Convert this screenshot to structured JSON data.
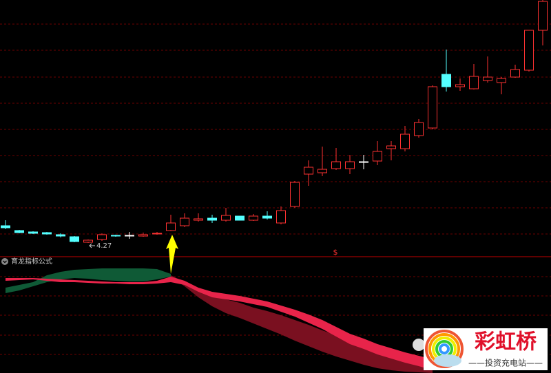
{
  "chart_data": [
    {
      "type": "candlestick",
      "open": [
        4.52,
        4.45,
        4.43,
        4.42,
        4.39,
        4.36,
        4.28,
        4.32,
        4.38,
        4.38,
        4.37,
        4.4,
        4.45,
        4.52,
        4.6,
        4.63,
        4.6,
        4.66,
        4.6,
        4.66,
        4.56,
        4.8,
        5.27,
        5.29,
        5.35,
        5.35,
        5.45,
        5.46,
        5.64,
        5.64,
        5.83,
        5.94,
        6.72,
        6.54,
        6.51,
        6.63,
        6.6,
        6.68,
        6.78,
        7.36
      ],
      "high": [
        4.6,
        4.46,
        4.44,
        4.43,
        4.41,
        4.37,
        4.32,
        4.41,
        4.39,
        4.43,
        4.42,
        4.43,
        4.68,
        4.7,
        4.7,
        4.68,
        4.78,
        4.66,
        4.69,
        4.73,
        4.8,
        5.17,
        5.47,
        5.67,
        5.65,
        5.55,
        5.55,
        5.75,
        5.75,
        5.97,
        6.07,
        6.56,
        7.08,
        6.66,
        6.87,
        6.98,
        6.68,
        6.86,
        7.36,
        7.8
      ],
      "low": [
        4.47,
        4.41,
        4.4,
        4.39,
        4.35,
        4.28,
        4.27,
        4.3,
        4.36,
        4.33,
        4.36,
        4.39,
        4.44,
        4.5,
        4.58,
        4.56,
        4.58,
        4.6,
        4.59,
        4.61,
        4.54,
        4.78,
        5.1,
        5.24,
        5.33,
        5.27,
        5.34,
        5.4,
        5.47,
        5.6,
        5.8,
        5.92,
        6.47,
        6.48,
        6.5,
        6.6,
        6.43,
        6.67,
        6.76,
        7.14
      ],
      "close": [
        4.49,
        4.42,
        4.41,
        4.4,
        4.37,
        4.29,
        4.31,
        4.39,
        4.37,
        4.38,
        4.39,
        4.41,
        4.56,
        4.63,
        4.62,
        4.6,
        4.67,
        4.6,
        4.66,
        4.63,
        4.74,
        5.15,
        5.37,
        5.34,
        5.45,
        5.45,
        5.45,
        5.6,
        5.68,
        5.85,
        6.02,
        6.54,
        6.54,
        6.57,
        6.69,
        6.68,
        6.66,
        6.79,
        7.36,
        7.78
      ],
      "up_color": "#ff3232",
      "down_color": "#54ffff",
      "flat_color": "#ffffff",
      "ylim": [
        4.07,
        7.8
      ],
      "marker_text": "$"
    },
    {
      "type": "band",
      "title": "育龙指标公式",
      "ylim": [
        0,
        169
      ],
      "series": [
        {
          "color": "#0f5a36",
          "upper": [
            124,
            128,
            132,
            142,
            147,
            150,
            151,
            152,
            152,
            152,
            152,
            151,
            144,
            null,
            null,
            null,
            null,
            null,
            null,
            null,
            null,
            null,
            null,
            null,
            null,
            null,
            null,
            null,
            null,
            null,
            null,
            null,
            null,
            null,
            null,
            null,
            null,
            null,
            null,
            null
          ],
          "lower": [
            116,
            120,
            126,
            132,
            136,
            138,
            137,
            135,
            134,
            133,
            133,
            136,
            140,
            null,
            null,
            null,
            null,
            null,
            null,
            null,
            null,
            null,
            null,
            null,
            null,
            null,
            null,
            null,
            null,
            null,
            null,
            null,
            null,
            null,
            null,
            null,
            null,
            null,
            null,
            null
          ]
        },
        {
          "color": "#7a1020",
          "upper": [
            null,
            null,
            null,
            null,
            null,
            null,
            null,
            null,
            null,
            null,
            null,
            null,
            142,
            132,
            122,
            114,
            107,
            102,
            95,
            90,
            84,
            77,
            70,
            62,
            55,
            48,
            42,
            35,
            29,
            24,
            20,
            17,
            null,
            null,
            null,
            null,
            null,
            null,
            null,
            null
          ],
          "lower": [
            null,
            null,
            null,
            null,
            null,
            null,
            null,
            null,
            null,
            null,
            null,
            null,
            140,
            126,
            110,
            97,
            87,
            80,
            72,
            64,
            56,
            47,
            39,
            31,
            24,
            18,
            12,
            7,
            4,
            2,
            1,
            0,
            null,
            null,
            null,
            null,
            null,
            null,
            null,
            null
          ]
        },
        {
          "color": "#e8244a",
          "upper": [
            138,
            138,
            138,
            137,
            136,
            135,
            134,
            133,
            132,
            132,
            132,
            134,
            140,
            134,
            124,
            118,
            115,
            112,
            108,
            104,
            98,
            92,
            85,
            77,
            67,
            57,
            50,
            42,
            36,
            30,
            25,
            20,
            null,
            null,
            null,
            null,
            null,
            null,
            null,
            null
          ],
          "lower": [
            134,
            135,
            136,
            134,
            132,
            132,
            131,
            130,
            130,
            129,
            129,
            130,
            132,
            128,
            118,
            110,
            107,
            104,
            100,
            96,
            89,
            82,
            73,
            64,
            53,
            42,
            35,
            27,
            21,
            15,
            10,
            4,
            null,
            null,
            null,
            null,
            null,
            null,
            null,
            null
          ]
        }
      ]
    }
  ],
  "watermark": {
    "title": "彩虹桥",
    "subtitle": "——投资充电站——"
  }
}
